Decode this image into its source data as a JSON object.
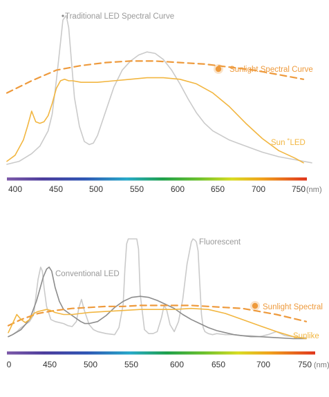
{
  "colors": {
    "orange": "#EE9A3C",
    "amber": "#F2B640",
    "light_gray": "#CACACA",
    "mid_gray": "#A8A8A8",
    "dark_gray": "#8C8C8C",
    "tick_text": "#333333",
    "unit_text": "#777777"
  },
  "chart_data": [
    {
      "type": "line",
      "xlim": [
        390,
        760
      ],
      "ylim": [
        0,
        100
      ],
      "tick_labels": [
        "400",
        "450",
        "500",
        "550",
        "600",
        "650",
        "700",
        "750"
      ],
      "x_unit": "(nm)",
      "grid": false,
      "series": [
        {
          "name": "Traditional LED Spectral Curve",
          "style": "solid",
          "color_key": "light_gray",
          "label_position": "top",
          "x": [
            390,
            405,
            420,
            430,
            440,
            445,
            450,
            455,
            458,
            462,
            465,
            468,
            472,
            478,
            484,
            490,
            495,
            500,
            510,
            520,
            530,
            540,
            550,
            560,
            570,
            580,
            590,
            600,
            610,
            620,
            630,
            640,
            650,
            660,
            670,
            680,
            690,
            700,
            720,
            740,
            760
          ],
          "y": [
            0,
            2,
            7,
            12,
            22,
            33,
            55,
            80,
            95,
            98,
            90,
            70,
            44,
            25,
            15,
            13,
            14,
            19,
            35,
            51,
            62,
            68,
            72,
            74,
            73,
            69,
            62,
            53,
            43,
            34,
            27,
            22,
            19,
            16,
            14,
            12,
            10,
            8,
            5,
            3,
            1
          ]
        },
        {
          "name": "Sunlight Spectral Curve",
          "style": "dashed",
          "color_key": "orange",
          "label_position": "right",
          "x": [
            390,
            420,
            450,
            480,
            510,
            540,
            570,
            600,
            630,
            660,
            690,
            720,
            750
          ],
          "y": [
            47,
            55,
            62,
            65,
            67,
            68,
            68,
            67,
            66,
            64,
            62,
            59,
            56
          ]
        },
        {
          "name": "Sun ˚LED",
          "style": "solid",
          "color_key": "amber",
          "label_position": "right",
          "x": [
            390,
            400,
            410,
            415,
            420,
            425,
            430,
            435,
            440,
            445,
            450,
            455,
            460,
            465,
            470,
            480,
            500,
            520,
            540,
            560,
            580,
            600,
            620,
            640,
            660,
            680,
            700,
            720,
            740,
            750
          ],
          "y": [
            2,
            6,
            16,
            25,
            35,
            28,
            27,
            28,
            32,
            40,
            50,
            55,
            56,
            55,
            55,
            54,
            54,
            55,
            56,
            57,
            57,
            56,
            53,
            47,
            38,
            27,
            17,
            9,
            4,
            1
          ]
        }
      ]
    },
    {
      "type": "line",
      "xlim": [
        0,
        760
      ],
      "ylim": [
        0,
        100
      ],
      "tick_labels": [
        "0",
        "450",
        "500",
        "550",
        "600",
        "650",
        "700",
        "750"
      ],
      "x_unit": "(nm)",
      "grid": false,
      "series": [
        {
          "name": "Fluorescent",
          "style": "solid",
          "color_key": "light_gray",
          "label_position": "top",
          "x": [
            405,
            410,
            415,
            420,
            425,
            430,
            435,
            437,
            440,
            443,
            445,
            447,
            450,
            455,
            460,
            465,
            470,
            475,
            480,
            485,
            488,
            491,
            494,
            500,
            505,
            510,
            520,
            530,
            535,
            540,
            542,
            544,
            546,
            548,
            550,
            551,
            552,
            553,
            554,
            556,
            558,
            560,
            565,
            570,
            575,
            580,
            585,
            588,
            591,
            595,
            600,
            605,
            610,
            615,
            620,
            622,
            624,
            626,
            628,
            630,
            632,
            634,
            636,
            640,
            645,
            650,
            660,
            670,
            680,
            690,
            700,
            710,
            720,
            730,
            740,
            750,
            755
          ],
          "y": [
            3,
            5,
            8,
            12,
            15,
            18,
            25,
            40,
            60,
            72,
            68,
            52,
            33,
            20,
            18,
            17,
            16,
            14,
            13,
            18,
            32,
            40,
            30,
            15,
            10,
            8,
            6,
            5,
            12,
            35,
            70,
            95,
            100,
            100,
            100,
            100,
            100,
            100,
            100,
            100,
            90,
            45,
            10,
            6,
            6,
            8,
            22,
            34,
            30,
            15,
            8,
            18,
            40,
            75,
            97,
            100,
            99,
            97,
            88,
            55,
            25,
            12,
            8,
            6,
            5,
            6,
            5,
            5,
            4,
            4,
            3,
            5,
            8,
            4,
            3,
            2,
            2
          ]
        },
        {
          "name": "Conventional LED",
          "style": "solid",
          "color_key": "dark_gray",
          "label_position": "top",
          "x": [
            405,
            410,
            420,
            430,
            438,
            442,
            446,
            450,
            453,
            456,
            460,
            465,
            470,
            475,
            480,
            485,
            490,
            495,
            500,
            510,
            520,
            530,
            540,
            550,
            560,
            570,
            580,
            590,
            600,
            610,
            620,
            630,
            640,
            650,
            660,
            670,
            680,
            690,
            700,
            720,
            740,
            755
          ],
          "y": [
            3,
            5,
            10,
            20,
            38,
            50,
            62,
            70,
            72,
            68,
            52,
            38,
            30,
            27,
            24,
            21,
            18,
            16,
            16,
            18,
            24,
            32,
            38,
            42,
            43,
            42,
            39,
            35,
            31,
            25,
            20,
            16,
            12,
            9,
            7,
            5,
            4,
            3,
            3,
            2,
            1,
            1
          ]
        },
        {
          "name": "Sunlight Spectral",
          "style": "dashed",
          "color_key": "orange",
          "label_position": "right",
          "x": [
            405,
            420,
            440,
            460,
            480,
            500,
            520,
            540,
            560,
            580,
            600,
            620,
            640,
            660,
            680,
            700,
            720,
            740,
            755
          ],
          "y": [
            14,
            20,
            26,
            29,
            31,
            32,
            33,
            33,
            34,
            34,
            34,
            34,
            33,
            32,
            31,
            28,
            25,
            21,
            18
          ]
        },
        {
          "name": "Sunlike",
          "style": "solid",
          "color_key": "amber",
          "label_position": "right",
          "x": [
            405,
            410,
            415,
            420,
            425,
            430,
            435,
            440,
            445,
            450,
            455,
            460,
            470,
            480,
            490,
            500,
            520,
            540,
            560,
            580,
            600,
            620,
            640,
            660,
            680,
            700,
            720,
            740,
            755
          ],
          "y": [
            7,
            16,
            25,
            20,
            17,
            20,
            26,
            28,
            29,
            30,
            29,
            27,
            25,
            25,
            26,
            27,
            28,
            29,
            30,
            30,
            30,
            31,
            30,
            26,
            20,
            14,
            8,
            3,
            1
          ]
        }
      ]
    }
  ]
}
